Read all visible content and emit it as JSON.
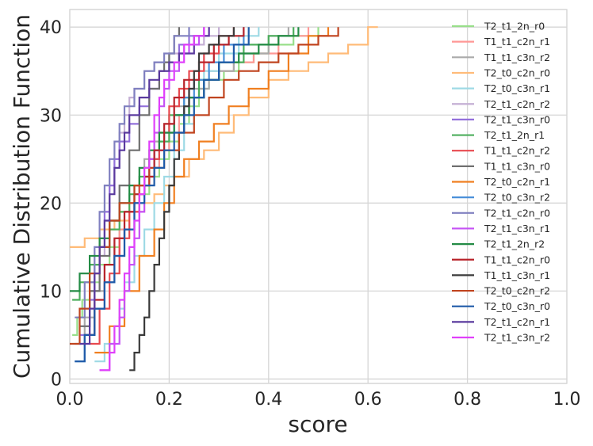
{
  "chart_data": {
    "type": "line",
    "subtype": "step-cdf",
    "title": "",
    "xlabel": "score",
    "ylabel": "Cumulative Distribution Function",
    "xlim": [
      0.0,
      1.0
    ],
    "ylim": [
      -0.5,
      42
    ],
    "x_ticks": [
      0.0,
      0.2,
      0.4,
      0.6,
      0.8,
      1.0
    ],
    "x_tick_labels": [
      "0.0",
      "0.2",
      "0.4",
      "0.6",
      "0.8",
      "1.0"
    ],
    "y_ticks": [
      0,
      10,
      20,
      30,
      40
    ],
    "y_tick_labels": [
      "0",
      "10",
      "20",
      "30",
      "40"
    ],
    "grid": true,
    "legend_position": "top-right",
    "series": [
      {
        "name": "T2_t1_2n_r0",
        "color": "#98df8a",
        "x": [
          0.005,
          0.015,
          0.025,
          0.04,
          0.06,
          0.08,
          0.1,
          0.12,
          0.14,
          0.16,
          0.18,
          0.2,
          0.22,
          0.24,
          0.26,
          0.28,
          0.31,
          0.34,
          0.37,
          0.4,
          0.45,
          0.5
        ],
        "y": [
          5,
          7,
          9,
          11,
          13,
          15,
          17,
          19,
          21,
          23,
          25,
          27,
          29,
          31,
          33,
          34,
          35,
          36,
          37,
          38,
          39,
          40
        ]
      },
      {
        "name": "T1_t1_c2n_r1",
        "color": "#ff9896",
        "x": [
          0.03,
          0.05,
          0.07,
          0.09,
          0.1,
          0.12,
          0.14,
          0.16,
          0.18,
          0.2,
          0.22,
          0.24,
          0.27,
          0.3,
          0.33,
          0.37,
          0.42,
          0.48
        ],
        "y": [
          5,
          8,
          11,
          14,
          17,
          20,
          22,
          24,
          26,
          28,
          30,
          32,
          34,
          35,
          36,
          37,
          39,
          40
        ]
      },
      {
        "name": "T1_t1_c3n_r2",
        "color": "#aaaaaa",
        "x": [
          0.01,
          0.03,
          0.05,
          0.07,
          0.09,
          0.11,
          0.13,
          0.15,
          0.17,
          0.19,
          0.21,
          0.24,
          0.28,
          0.33,
          0.4,
          0.44
        ],
        "y": [
          4,
          7,
          10,
          13,
          16,
          19,
          22,
          25,
          27,
          29,
          31,
          33,
          35,
          37,
          39,
          40
        ]
      },
      {
        "name": "T2_t0_c2n_r0",
        "color": "#ffbb78",
        "x": [
          0.0,
          0.03,
          0.06,
          0.09,
          0.12,
          0.15,
          0.17,
          0.19,
          0.21,
          0.24,
          0.27,
          0.3,
          0.33,
          0.36,
          0.4,
          0.44,
          0.48,
          0.52,
          0.56,
          0.6,
          0.62
        ],
        "y": [
          15,
          16,
          17,
          18,
          19,
          20,
          21,
          22,
          23,
          25,
          26,
          28,
          30,
          32,
          34,
          35,
          36,
          37,
          38,
          40,
          40
        ]
      },
      {
        "name": "T2_t0_c3n_r1",
        "color": "#9edae5",
        "x": [
          0.05,
          0.07,
          0.09,
          0.1,
          0.11,
          0.13,
          0.15,
          0.17,
          0.19,
          0.21,
          0.23,
          0.25,
          0.27,
          0.3,
          0.34,
          0.38
        ],
        "y": [
          2,
          4,
          6,
          8,
          11,
          14,
          17,
          20,
          23,
          26,
          29,
          32,
          35,
          37,
          39,
          40
        ]
      },
      {
        "name": "T2_t1_c2n_r2",
        "color": "#c5b0d5",
        "x": [
          0.02,
          0.04,
          0.06,
          0.07,
          0.08,
          0.09,
          0.1,
          0.11,
          0.12,
          0.13,
          0.15,
          0.17,
          0.2,
          0.23,
          0.27,
          0.3
        ],
        "y": [
          6,
          10,
          14,
          18,
          22,
          25,
          28,
          30,
          32,
          33,
          35,
          36,
          37,
          38,
          39,
          40
        ]
      },
      {
        "name": "T2_t1_c3n_r0",
        "color": "#9370db",
        "x": [
          0.02,
          0.04,
          0.05,
          0.06,
          0.07,
          0.08,
          0.09,
          0.1,
          0.12,
          0.14,
          0.16,
          0.18,
          0.2,
          0.22,
          0.24,
          0.27
        ],
        "y": [
          5,
          9,
          13,
          16,
          19,
          22,
          25,
          27,
          29,
          31,
          33,
          35,
          36,
          38,
          39,
          40
        ]
      },
      {
        "name": "T2_t1_2n_r1",
        "color": "#4cae5c",
        "x": [
          0.005,
          0.02,
          0.04,
          0.06,
          0.08,
          0.1,
          0.12,
          0.14,
          0.16,
          0.18,
          0.2,
          0.23,
          0.26,
          0.3,
          0.35,
          0.4,
          0.45
        ],
        "y": [
          9,
          11,
          13,
          15,
          17,
          19,
          21,
          23,
          25,
          27,
          30,
          32,
          34,
          36,
          38,
          39,
          40
        ]
      },
      {
        "name": "T1_t1_c2n_r2",
        "color": "#e8494f",
        "x": [
          0.04,
          0.06,
          0.08,
          0.1,
          0.12,
          0.14,
          0.16,
          0.18,
          0.2,
          0.22,
          0.24,
          0.27,
          0.3,
          0.33
        ],
        "y": [
          4,
          8,
          12,
          16,
          19,
          22,
          25,
          28,
          31,
          33,
          35,
          37,
          39,
          40
        ]
      },
      {
        "name": "T1_t1_c3n_r0",
        "color": "#6f6f6f",
        "x": [
          0.02,
          0.04,
          0.06,
          0.08,
          0.1,
          0.12,
          0.14,
          0.16,
          0.18,
          0.19,
          0.2,
          0.21,
          0.22
        ],
        "y": [
          6,
          10,
          14,
          18,
          22,
          26,
          30,
          33,
          35,
          36,
          37,
          39,
          40
        ]
      },
      {
        "name": "T2_t0_c2n_r1",
        "color": "#f07f20",
        "x": [
          0.05,
          0.08,
          0.11,
          0.14,
          0.17,
          0.19,
          0.21,
          0.23,
          0.26,
          0.29,
          0.32,
          0.36,
          0.4,
          0.44,
          0.48,
          0.52
        ],
        "y": [
          3,
          6,
          10,
          14,
          17,
          20,
          23,
          25,
          27,
          29,
          31,
          33,
          35,
          37,
          39,
          40
        ]
      },
      {
        "name": "T2_t0_c3n_r2",
        "color": "#4a90d9",
        "x": [
          0.01,
          0.03,
          0.05,
          0.07,
          0.09,
          0.11,
          0.13,
          0.15,
          0.17,
          0.19,
          0.21,
          0.23,
          0.25,
          0.28,
          0.31,
          0.35
        ],
        "y": [
          2,
          5,
          8,
          11,
          14,
          17,
          20,
          23,
          26,
          28,
          30,
          32,
          34,
          36,
          38,
          40
        ]
      },
      {
        "name": "T2_t1_c2n_r0",
        "color": "#8080c0",
        "x": [
          0.01,
          0.03,
          0.05,
          0.06,
          0.07,
          0.08,
          0.09,
          0.1,
          0.11,
          0.13,
          0.15,
          0.17,
          0.19,
          0.21,
          0.24
        ],
        "y": [
          7,
          11,
          15,
          19,
          22,
          25,
          27,
          29,
          31,
          33,
          35,
          36,
          37,
          39,
          40
        ]
      },
      {
        "name": "T2_t1_c3n_r1",
        "color": "#c552f5",
        "x": [
          0.06,
          0.08,
          0.1,
          0.11,
          0.12,
          0.13,
          0.14,
          0.15,
          0.16,
          0.17,
          0.18,
          0.19,
          0.2,
          0.22,
          0.24,
          0.26,
          0.28
        ],
        "y": [
          1,
          4,
          7,
          10,
          13,
          16,
          19,
          22,
          25,
          28,
          31,
          33,
          35,
          37,
          38,
          39,
          40
        ]
      },
      {
        "name": "T2_t1_2n_r2",
        "color": "#238b45",
        "x": [
          0.0,
          0.02,
          0.04,
          0.06,
          0.08,
          0.1,
          0.12,
          0.14,
          0.16,
          0.18,
          0.21,
          0.24,
          0.27,
          0.3,
          0.34,
          0.38,
          0.42,
          0.46
        ],
        "y": [
          10,
          12,
          14,
          16,
          18,
          20,
          22,
          24,
          26,
          28,
          30,
          32,
          34,
          36,
          37,
          38,
          39,
          40
        ]
      },
      {
        "name": "T1_t1_c2n_r0",
        "color": "#b8232a",
        "x": [
          0.03,
          0.05,
          0.07,
          0.09,
          0.11,
          0.13,
          0.15,
          0.17,
          0.19,
          0.21,
          0.23,
          0.26,
          0.29,
          0.32,
          0.35
        ],
        "y": [
          5,
          9,
          13,
          16,
          19,
          21,
          23,
          26,
          29,
          32,
          34,
          36,
          38,
          39,
          40
        ]
      },
      {
        "name": "T1_t1_c3n_r1",
        "color": "#3a3a3a",
        "x": [
          0.12,
          0.13,
          0.14,
          0.15,
          0.16,
          0.17,
          0.18,
          0.19,
          0.2,
          0.21,
          0.22,
          0.23,
          0.24,
          0.25,
          0.26,
          0.28,
          0.3,
          0.33
        ],
        "y": [
          1,
          3,
          5,
          7,
          10,
          13,
          16,
          19,
          22,
          25,
          28,
          31,
          33,
          35,
          37,
          38,
          39,
          40
        ]
      },
      {
        "name": "T2_t0_c2n_r2",
        "color": "#c0441f",
        "x": [
          0.0,
          0.02,
          0.04,
          0.06,
          0.08,
          0.1,
          0.13,
          0.16,
          0.19,
          0.22,
          0.25,
          0.28,
          0.31,
          0.34,
          0.38,
          0.42,
          0.46,
          0.5,
          0.54
        ],
        "y": [
          4,
          8,
          12,
          15,
          18,
          20,
          22,
          24,
          26,
          28,
          30,
          32,
          34,
          35,
          36,
          37,
          38,
          39,
          40
        ]
      },
      {
        "name": "T2_t0_c3n_r0",
        "color": "#1f5aa8",
        "x": [
          0.01,
          0.03,
          0.05,
          0.07,
          0.09,
          0.11,
          0.13,
          0.15,
          0.17,
          0.19,
          0.21,
          0.23,
          0.25,
          0.27,
          0.3,
          0.33,
          0.36
        ],
        "y": [
          2,
          5,
          8,
          11,
          14,
          17,
          20,
          22,
          24,
          26,
          28,
          30,
          32,
          34,
          36,
          38,
          40
        ]
      },
      {
        "name": "T2_t1_c2n_r1",
        "color": "#5a3a9e",
        "x": [
          0.02,
          0.04,
          0.05,
          0.06,
          0.07,
          0.08,
          0.09,
          0.1,
          0.11,
          0.12,
          0.14,
          0.16,
          0.18,
          0.2,
          0.22,
          0.25,
          0.28
        ],
        "y": [
          4,
          8,
          12,
          15,
          18,
          21,
          24,
          26,
          28,
          30,
          32,
          34,
          35,
          36,
          37,
          39,
          40
        ]
      },
      {
        "name": "T2_t1_c3n_r2",
        "color": "#e040fb",
        "x": [
          0.06,
          0.08,
          0.09,
          0.1,
          0.11,
          0.12,
          0.13,
          0.14,
          0.15,
          0.16,
          0.17,
          0.18,
          0.19,
          0.21,
          0.23,
          0.25,
          0.27
        ],
        "y": [
          1,
          3,
          6,
          9,
          12,
          15,
          18,
          21,
          24,
          27,
          30,
          32,
          34,
          36,
          38,
          39,
          40
        ]
      }
    ]
  }
}
